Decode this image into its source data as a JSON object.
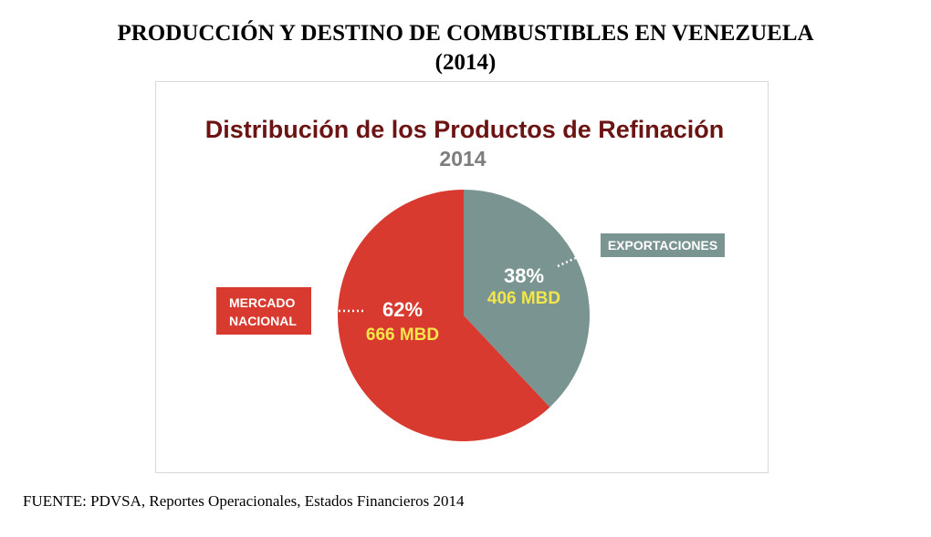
{
  "page": {
    "title_line1": "PRODUCCIÓN Y DESTINO DE COMBUSTIBLES EN VENEZUELA",
    "title_line2": "(2014)",
    "source": "FUENTE: PDVSA, Reportes Operacionales, Estados Financieros 2014"
  },
  "chart_data": {
    "type": "pie",
    "title": "Distribución de los Productos de Refinación",
    "subtitle": "2014",
    "slices": [
      {
        "label_lines": [
          "MERCADO",
          "NACIONAL"
        ],
        "percent": 62,
        "percent_label": "62%",
        "value": 666,
        "value_label": "666 MBD",
        "color": "#d93a2f"
      },
      {
        "label_lines": [
          "EXPORTACIONES"
        ],
        "percent": 38,
        "percent_label": "38%",
        "value": 406,
        "value_label": "406 MBD",
        "color": "#7a9591"
      }
    ],
    "legend": "none",
    "colors": {
      "title": "#6b1413",
      "subtitle": "#7d7d7d",
      "value_text": "#f2e64a",
      "percent_text": "#ffffff",
      "callout_line": "#ffffff"
    }
  }
}
